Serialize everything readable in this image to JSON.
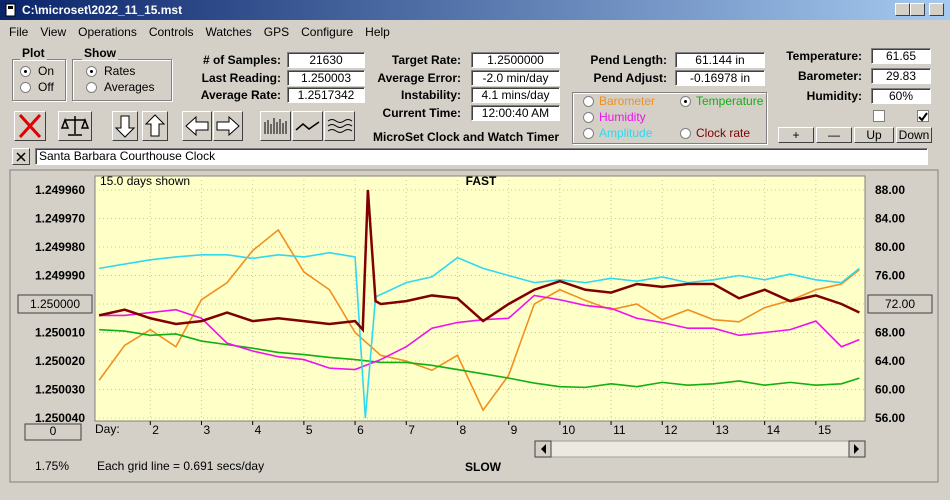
{
  "window": {
    "title": "C:\\microset\\2022_11_15.mst"
  },
  "menu": [
    "File",
    "View",
    "Operations",
    "Controls",
    "Watches",
    "GPS",
    "Configure",
    "Help"
  ],
  "plot_group": {
    "title": "Plot",
    "options": [
      "On",
      "Off"
    ],
    "selected": 0
  },
  "show_group": {
    "title": "Show",
    "options": [
      "Rates",
      "Averages"
    ],
    "selected": 0
  },
  "readouts": [
    [
      {
        "label": "# of Samples:",
        "value": "21630"
      },
      {
        "label": "Last Reading:",
        "value": "1.250003"
      },
      {
        "label": "Average Rate:",
        "value": "1.2517342"
      }
    ],
    [
      {
        "label": "Target Rate:",
        "value": "1.2500000"
      },
      {
        "label": "Average Error:",
        "value": "-2.0 min/day"
      },
      {
        "label": "Instability:",
        "value": "4.1 mins/day"
      },
      {
        "label": "Current Time:",
        "value": "12:00:40 AM"
      }
    ],
    [
      {
        "label": "Pend Length:",
        "value": "61.144 in"
      },
      {
        "label": "Pend Adjust:",
        "value": "-0.16978 in"
      }
    ],
    [
      {
        "label": "Temperature:",
        "value": "61.65"
      },
      {
        "label": "Barometer:",
        "value": "29.83"
      },
      {
        "label": "Humidity:",
        "value": "60%"
      }
    ]
  ],
  "checkboxes": [
    false,
    true
  ],
  "caption": "MicroSet Clock and Watch Timer",
  "buttons": [
    "+",
    "—",
    "Up",
    "Down"
  ],
  "watch_name": "Santa Barbara Courthouse Clock",
  "chart_data": {
    "type": "line",
    "top_label": "FAST",
    "bottom_label": "SLOW",
    "span_label": "15.0 days shown",
    "x_label": "Day:",
    "grid_note": "Each grid line = 0.691 secs/day",
    "scale_value": "0",
    "percent": "1.75%",
    "grid": true,
    "selected_series": 1,
    "xlim": [
      0.92,
      15.96
    ],
    "xticks": [
      2,
      3,
      4,
      5,
      6,
      7,
      8,
      9,
      10,
      11,
      12,
      13,
      14,
      15
    ],
    "ylim": [
      1.25004,
      1.24996
    ],
    "yticks": [
      {
        "value": 1.24996,
        "label": "1.249960"
      },
      {
        "value": 1.24997,
        "label": "1.249970"
      },
      {
        "value": 1.24998,
        "label": "1.249980"
      },
      {
        "value": 1.24999,
        "label": "1.249990"
      },
      {
        "value": 1.25,
        "label": "1.250000"
      },
      {
        "value": 1.25001,
        "label": "1.250010"
      },
      {
        "value": 1.25002,
        "label": "1.250020"
      },
      {
        "value": 1.25003,
        "label": "1.250030"
      },
      {
        "value": 1.25004,
        "label": "1.250040"
      }
    ],
    "y2lim": [
      56,
      88
    ],
    "y2ticks": [
      {
        "value": 88,
        "label": "88.00"
      },
      {
        "value": 84,
        "label": "84.00"
      },
      {
        "value": 80,
        "label": "80.00"
      },
      {
        "value": 76,
        "label": "76.00"
      },
      {
        "value": 72,
        "label": "72.00"
      },
      {
        "value": 68,
        "label": "68.00"
      },
      {
        "value": 64,
        "label": "64.00"
      },
      {
        "value": 60,
        "label": "60.00"
      },
      {
        "value": 56,
        "label": "56.00"
      }
    ],
    "series": [
      {
        "name": "Barometer",
        "color": "#f0901e",
        "axis": "y2",
        "x": [
          1,
          1.5,
          2,
          2.5,
          3,
          3.5,
          4,
          4.5,
          5,
          5.5,
          6,
          6.5,
          7,
          7.5,
          8,
          8.5,
          9,
          9.5,
          10,
          10.5,
          11,
          11.5,
          12,
          12.5,
          13,
          13.5,
          14,
          14.5,
          15,
          15.5,
          15.85
        ],
        "values": [
          61.3,
          66.2,
          68.4,
          66.0,
          72.6,
          75.0,
          79.5,
          82.4,
          76.5,
          74.0,
          68.0,
          64.8,
          64.0,
          62.7,
          64.8,
          57.1,
          62.0,
          72.0,
          74.0,
          72.5,
          71.2,
          72.0,
          69.8,
          71.2,
          69.8,
          69.5,
          71.5,
          72.5,
          74.0,
          74.8,
          76.8
        ]
      },
      {
        "name": "Temperature",
        "color": "#10b010",
        "axis": "y2",
        "x": [
          1,
          1.5,
          2,
          2.5,
          3,
          3.5,
          4,
          4.5,
          5,
          5.5,
          6,
          6.5,
          7,
          7.5,
          8,
          8.5,
          9,
          9.5,
          10,
          10.5,
          11,
          11.5,
          12,
          12.5,
          13,
          13.5,
          14,
          14.5,
          15,
          15.5,
          15.85
        ],
        "values": [
          68.4,
          68.2,
          67.6,
          67.8,
          66.8,
          66.3,
          65.8,
          65.2,
          64.9,
          64.5,
          64.2,
          63.8,
          63.8,
          63.4,
          62.8,
          62.2,
          61.6,
          60.9,
          60.4,
          60.3,
          60.8,
          60.4,
          61.0,
          60.6,
          60.8,
          61.2,
          60.6,
          61.0,
          60.6,
          60.8,
          61.6
        ]
      },
      {
        "name": "Humidity",
        "color": "#f010f0",
        "axis": "y2",
        "x": [
          1,
          1.5,
          2,
          2.5,
          3,
          3.5,
          4,
          4.5,
          5,
          5.5,
          6,
          6.5,
          7,
          7.5,
          8,
          8.5,
          9,
          9.5,
          10,
          10.5,
          11,
          11.5,
          12,
          12.5,
          13,
          13.5,
          14,
          14.5,
          15,
          15.5,
          15.85
        ],
        "values": [
          70.4,
          70.4,
          70.8,
          71.2,
          70.0,
          66.5,
          65.4,
          64.6,
          64.2,
          63.0,
          62.8,
          64.2,
          66.0,
          68.6,
          69.4,
          69.8,
          70.0,
          73.2,
          72.6,
          71.8,
          71.4,
          70.0,
          69.4,
          68.6,
          68.6,
          67.6,
          68.0,
          68.4,
          69.6,
          66.0,
          67.0
        ]
      },
      {
        "name": "Amplitude",
        "color": "#30d8f0",
        "axis": "y2",
        "x": [
          1,
          1.5,
          2,
          2.5,
          3,
          3.5,
          4,
          4.5,
          5,
          5.5,
          6,
          6.2,
          6.4,
          7,
          7.5,
          8,
          8.5,
          9,
          9.5,
          10,
          10.5,
          11,
          11.5,
          12,
          12.5,
          13,
          13.5,
          14,
          14.5,
          15,
          15.5,
          15.85
        ],
        "values": [
          77.0,
          77.6,
          78.2,
          78.6,
          78.9,
          78.9,
          78.4,
          78.9,
          78.6,
          79.2,
          78.6,
          56.0,
          73.0,
          75.0,
          75.8,
          78.5,
          77.0,
          76.0,
          75.0,
          75.4,
          75.0,
          75.6,
          75.2,
          75.8,
          75.0,
          75.4,
          76.0,
          75.4,
          76.2,
          75.4,
          75.0,
          77.0
        ]
      },
      {
        "name": "Clock rate",
        "color": "#800000",
        "axis": "y",
        "x": [
          1,
          1.5,
          2,
          2.5,
          3,
          3.5,
          4,
          4.5,
          5,
          5.5,
          6,
          6.15,
          6.25,
          6.4,
          6.5,
          7,
          7.5,
          8,
          8.5,
          9,
          9.5,
          10,
          10.5,
          11,
          11.5,
          12,
          12.5,
          13,
          13.5,
          14,
          14.5,
          15,
          15.5,
          15.85
        ],
        "values": [
          1.250004,
          1.250002,
          1.250005,
          1.250007,
          1.250006,
          1.250003,
          1.250006,
          1.250005,
          1.250006,
          1.250007,
          1.250006,
          1.250009,
          1.24996,
          1.249999,
          1.25,
          1.249999,
          1.249997,
          1.249998,
          1.250006,
          1.25,
          1.249995,
          1.249992,
          1.249995,
          1.249996,
          1.249993,
          1.249994,
          1.249993,
          1.249993,
          1.249998,
          1.249995,
          1.249999,
          1.249997,
          1.25,
          1.250003
        ]
      }
    ]
  }
}
